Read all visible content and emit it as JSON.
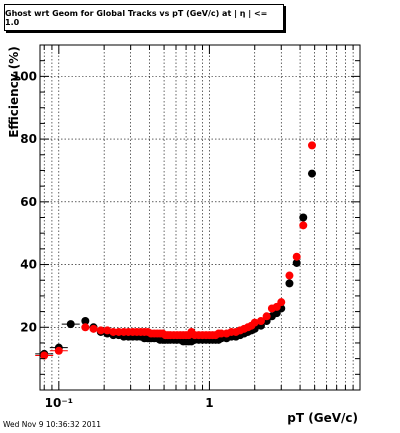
{
  "title": "Ghost wrt Geom for Global Tracks vs pT (GeV/c) at |  η | <= 1.0",
  "timestamp": "Wed Nov  9 10:36:32 2011",
  "chart_data": {
    "type": "scatter",
    "xlabel": "pT (GeV/c)",
    "ylabel": "Efficiency (%)",
    "xscale": "log",
    "xlim": [
      0.075,
      10
    ],
    "ylim": [
      0,
      110
    ],
    "xticks": [
      {
        "value": 0.1,
        "label": "10⁻¹"
      },
      {
        "value": 1,
        "label": "1"
      }
    ],
    "yticks": [
      20,
      40,
      60,
      80,
      100
    ],
    "grid": true,
    "series": [
      {
        "color": "#000000",
        "x": [
          0.08,
          0.1,
          0.12,
          0.15,
          0.17,
          0.19,
          0.21,
          0.23,
          0.25,
          0.27,
          0.29,
          0.31,
          0.33,
          0.35,
          0.37,
          0.39,
          0.41,
          0.43,
          0.45,
          0.47,
          0.49,
          0.51,
          0.53,
          0.55,
          0.58,
          0.61,
          0.64,
          0.67,
          0.7,
          0.73,
          0.76,
          0.8,
          0.85,
          0.9,
          0.95,
          1.0,
          1.05,
          1.1,
          1.15,
          1.2,
          1.3,
          1.4,
          1.5,
          1.6,
          1.7,
          1.8,
          1.9,
          2.0,
          2.2,
          2.4,
          2.6,
          2.8,
          3.0,
          3.4,
          3.8,
          4.2,
          4.8
        ],
        "y": [
          11.5,
          13.5,
          21,
          22,
          20,
          18.5,
          18,
          17.5,
          17.5,
          17,
          17,
          17,
          17,
          17,
          16.5,
          16.5,
          16.5,
          16.5,
          16.5,
          16,
          16,
          16,
          16,
          16,
          16,
          16,
          16,
          15.5,
          15.5,
          15.5,
          15.5,
          16,
          16,
          16,
          16,
          16,
          16,
          16,
          16,
          16.5,
          16.5,
          17,
          17,
          17.5,
          18,
          18.5,
          19,
          19.5,
          20.5,
          22,
          23.5,
          24.5,
          26,
          34,
          40.5,
          55,
          69
        ]
      },
      {
        "color": "#ff0000",
        "x": [
          0.08,
          0.1,
          0.15,
          0.17,
          0.19,
          0.21,
          0.23,
          0.25,
          0.27,
          0.29,
          0.31,
          0.33,
          0.35,
          0.37,
          0.39,
          0.41,
          0.43,
          0.45,
          0.47,
          0.49,
          0.51,
          0.53,
          0.55,
          0.58,
          0.61,
          0.64,
          0.67,
          0.7,
          0.73,
          0.76,
          0.8,
          0.85,
          0.9,
          0.95,
          1.0,
          1.05,
          1.1,
          1.15,
          1.2,
          1.3,
          1.4,
          1.5,
          1.6,
          1.7,
          1.8,
          1.9,
          2.0,
          2.2,
          2.4,
          2.6,
          2.8,
          3.0,
          3.4,
          3.8,
          4.2,
          4.8
        ],
        "y": [
          11,
          12.5,
          20,
          19.5,
          19,
          19,
          18.5,
          18.5,
          18.5,
          18.5,
          18.5,
          18.5,
          18.5,
          18.5,
          18.5,
          18,
          18,
          18,
          18,
          18,
          17.5,
          17.5,
          17.5,
          17.5,
          17.5,
          17.5,
          17.5,
          17.5,
          17.5,
          18.5,
          17.5,
          17.5,
          17.5,
          17.5,
          17.5,
          17.5,
          17.5,
          18,
          18,
          18,
          18.5,
          18.5,
          19,
          19.5,
          20,
          20.5,
          21.5,
          22,
          23.5,
          26,
          26.5,
          28,
          36.5,
          42.5,
          52.5,
          78
        ]
      }
    ]
  }
}
